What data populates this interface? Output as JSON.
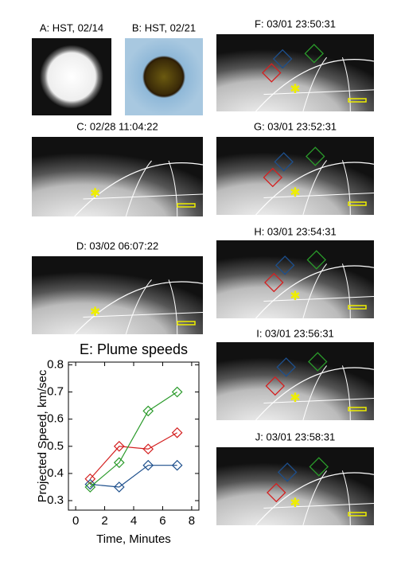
{
  "panels": [
    "A: HST, 02/14",
    "B: HST, 02/21",
    "C: 02/28 11:04:22",
    "D: 03/02 06:07:22",
    "F: 03/01 23:50:31",
    "G: 03/01 23:52:31",
    "H: 03/01 23:54:31",
    "I: 03/01 23:56:31",
    "J: 03/01 23:58:31"
  ],
  "chart_data": {
    "type": "line",
    "title": "E: Plume speeds",
    "xlabel": "Time, Minutes",
    "ylabel": "Projected Speed, km/sec",
    "x": [
      1,
      3,
      5,
      7
    ],
    "series": [
      {
        "color": "#d42020",
        "values": [
          0.38,
          0.5,
          0.49,
          0.55
        ]
      },
      {
        "color": "#1d4f8c",
        "values": [
          0.36,
          0.35,
          0.43,
          0.43
        ]
      },
      {
        "color": "#2a9a2a",
        "values": [
          0.35,
          0.44,
          0.63,
          0.7
        ]
      }
    ],
    "xlim": [
      -0.5,
      8.5
    ],
    "xticks": [
      0,
      2,
      4,
      6,
      8
    ],
    "ylim": [
      0.265,
      0.81
    ],
    "yticks": [
      0.3,
      0.4,
      0.5,
      0.6,
      0.7,
      0.8
    ]
  }
}
